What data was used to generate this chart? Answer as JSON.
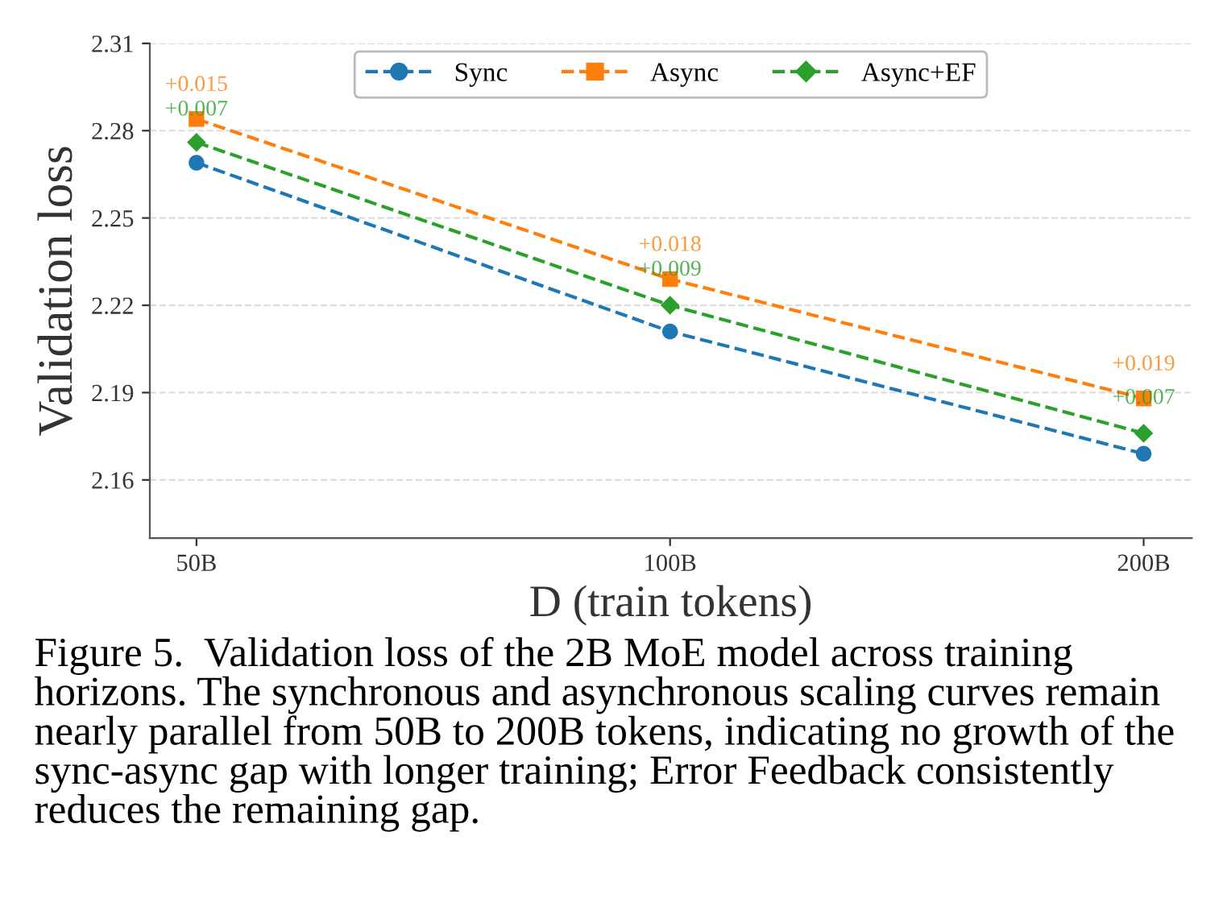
{
  "chart_data": {
    "type": "line",
    "xlabel": "D (train tokens)",
    "ylabel": "Validation loss",
    "x": [
      50,
      100,
      200
    ],
    "log": "x",
    "xlim": [
      46.7,
      214.6
    ],
    "xticks": [
      {
        "value": 50,
        "label": "50B"
      },
      {
        "value": 100,
        "label": "100B"
      },
      {
        "value": 200,
        "label": "200B"
      }
    ],
    "series": [
      {
        "name": "Sync",
        "color": "#1f77b4",
        "marker": "circle",
        "values": [
          2.269,
          2.211,
          2.169
        ]
      },
      {
        "name": "Async",
        "color": "#ff7f0e",
        "marker": "square",
        "values": [
          2.284,
          2.229,
          2.188
        ]
      },
      {
        "name": "Async+EF",
        "color": "#2ca02c",
        "marker": "diamond",
        "values": [
          2.276,
          2.22,
          2.176
        ]
      }
    ],
    "line_style": "dashed",
    "ylim": [
      2.14,
      2.31
    ],
    "yticks": [
      2.16,
      2.19,
      2.22,
      2.25,
      2.28,
      2.31
    ],
    "grid": "y",
    "legend": "top",
    "annotations": [
      "+0.015",
      "+0.007",
      "+0.018",
      "+0.009",
      "+0.019",
      "+0.007",
      "Figure 5.  Validation loss of the 2B MoE model across training horizons. The synchronous and asynchronous scaling curves remain nearly parallel from 50B to 200B tokens, indicating no growth of the sync-async gap with longer training; Error Feedback consistently reduces the remaining gap."
    ]
  }
}
